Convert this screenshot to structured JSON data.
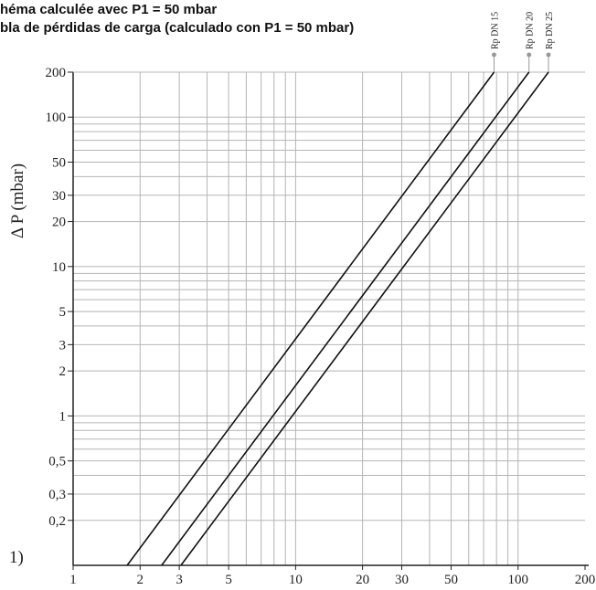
{
  "header": {
    "title_line1": "héma calculée avec P1 = 50 mbar",
    "title_line2": "bla de pérdidas de carga (calculado con P1 = 50 mbar)"
  },
  "footnote": "1)",
  "chart_data": {
    "type": "line",
    "ylabel": "Δ P (mbar)",
    "xlabel": "",
    "x_scale": "log",
    "y_scale": "log",
    "xlim": [
      1,
      200
    ],
    "ylim": [
      0.1,
      200
    ],
    "grid": true,
    "x_ticks": [
      1,
      2,
      3,
      5,
      10,
      20,
      30,
      50,
      100,
      200
    ],
    "x_tick_labels": [
      "1",
      "2",
      "3",
      "5",
      "10",
      "20",
      "30",
      "50",
      "100",
      "200"
    ],
    "y_ticks": [
      0.2,
      0.3,
      0.5,
      1,
      2,
      3,
      5,
      10,
      20,
      30,
      50,
      100,
      200
    ],
    "y_tick_labels": [
      "0,2",
      "0,3",
      "0,5",
      "1",
      "2",
      "3",
      "5",
      "10",
      "20",
      "30",
      "50",
      "100",
      "200"
    ],
    "series": [
      {
        "name": "Rp DN 15",
        "x": [
          1.75,
          78
        ],
        "y": [
          0.1,
          200
        ]
      },
      {
        "name": "Rp DN 20",
        "x": [
          2.5,
          112
        ],
        "y": [
          0.1,
          200
        ]
      },
      {
        "name": "Rp DN 25",
        "x": [
          3.05,
          137
        ],
        "y": [
          0.1,
          200
        ]
      }
    ],
    "colors": {
      "line": "#111111",
      "grid": "#b5b5b5",
      "axis": "#222222",
      "marker": "#999999"
    }
  }
}
